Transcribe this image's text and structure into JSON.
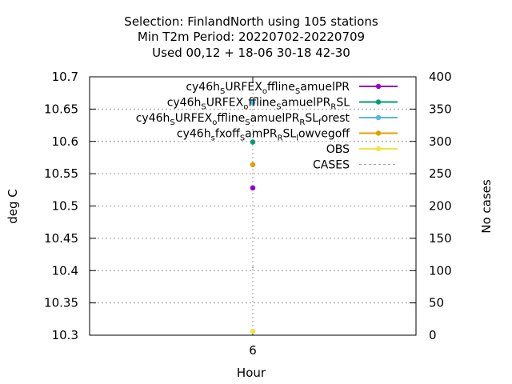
{
  "chart_data": {
    "type": "scatter",
    "title_lines": [
      "Selection: FinlandNorth using   105 stations",
      "Min T2m   Period: 20220702-20220709",
      "Used  00,12  + 18-06 30-18 42-30"
    ],
    "xlabel": "Hour",
    "ylabel": "deg C",
    "y2label": "No cases",
    "x_ticks": [
      "6"
    ],
    "xlim": [
      4,
      8
    ],
    "ylim": [
      10.3,
      10.7
    ],
    "y_ticks": [
      "10.3",
      "10.35",
      "10.4",
      "10.45",
      "10.5",
      "10.55",
      "10.6",
      "10.65",
      "10.7"
    ],
    "y2lim": [
      0,
      400
    ],
    "y2_ticks": [
      "0",
      "50",
      "100",
      "150",
      "200",
      "250",
      "300",
      "350",
      "400"
    ],
    "grid": true,
    "legend_position": "top-right",
    "series": [
      {
        "name_parts": [
          [
            "cy46h",
            ""
          ],
          [
            "S",
            "sub"
          ],
          [
            "URFEX",
            ""
          ],
          [
            "o",
            "sub"
          ],
          [
            "ffline",
            ""
          ],
          [
            "S",
            "sub"
          ],
          [
            "amuelPR",
            ""
          ]
        ],
        "color": "#9400d3",
        "x": [
          6
        ],
        "y": [
          10.528
        ]
      },
      {
        "name_parts": [
          [
            "cy46h",
            ""
          ],
          [
            "S",
            "sub"
          ],
          [
            "URFEX",
            ""
          ],
          [
            "o",
            "sub"
          ],
          [
            "ffline",
            ""
          ],
          [
            "S",
            "sub"
          ],
          [
            "amuelPR",
            ""
          ],
          [
            "R",
            "sub"
          ],
          [
            "SL",
            ""
          ]
        ],
        "color": "#009e73",
        "x": [
          6
        ],
        "y": [
          10.599
        ]
      },
      {
        "name_parts": [
          [
            "cy46h",
            ""
          ],
          [
            "S",
            "sub"
          ],
          [
            "URFEX",
            ""
          ],
          [
            "o",
            "sub"
          ],
          [
            "ffline",
            ""
          ],
          [
            "S",
            "sub"
          ],
          [
            "amuelPR",
            ""
          ],
          [
            "R",
            "sub"
          ],
          [
            "SL",
            ""
          ],
          [
            "f",
            "sub"
          ],
          [
            "orest",
            ""
          ]
        ],
        "color": "#56b4e9",
        "x": [
          6
        ],
        "y": [
          10.66
        ]
      },
      {
        "name_parts": [
          [
            "cy46h",
            ""
          ],
          [
            "s",
            "sub"
          ],
          [
            "fxoff",
            ""
          ],
          [
            "S",
            "sub"
          ],
          [
            "amPR",
            ""
          ],
          [
            "R",
            "sub"
          ],
          [
            "SL",
            ""
          ],
          [
            "l",
            "sub"
          ],
          [
            "owvegoff",
            ""
          ]
        ],
        "color": "#e69f00",
        "x": [
          6
        ],
        "y": [
          10.564
        ]
      },
      {
        "name_parts": [
          [
            "OBS",
            ""
          ]
        ],
        "color": "#f0e442",
        "x": [
          6
        ],
        "y": [
          10.306
        ]
      }
    ],
    "cases": {
      "name": "CASES",
      "color": "#a0a0a0",
      "x": [
        6
      ],
      "y2": [
        105
      ]
    }
  }
}
